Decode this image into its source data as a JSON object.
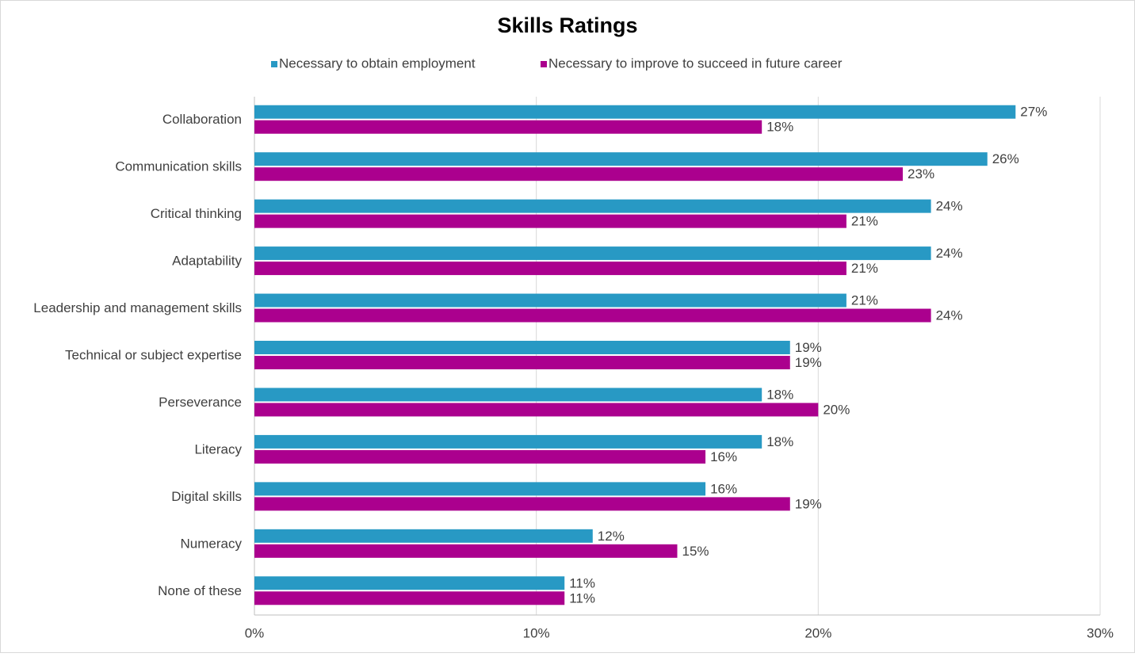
{
  "chart_data": {
    "type": "bar",
    "orientation": "horizontal",
    "title": "Skills Ratings",
    "categories": [
      "Collaboration",
      "Communication skills",
      "Critical thinking",
      "Adaptability",
      "Leadership and management skills",
      "Technical or subject expertise",
      "Perseverance",
      "Literacy",
      "Digital skills",
      "Numeracy",
      "None of these"
    ],
    "series": [
      {
        "name": "Necessary to obtain employment",
        "color": "#2899c4",
        "values": [
          27,
          26,
          24,
          24,
          21,
          19,
          18,
          18,
          16,
          12,
          11
        ],
        "value_labels": [
          "27%",
          "26%",
          "24%",
          "24%",
          "21%",
          "19%",
          "18%",
          "18%",
          "16%",
          "12%",
          "11%"
        ]
      },
      {
        "name": "Necessary to improve to succeed in future career",
        "color": "#ab008e",
        "values": [
          18,
          23,
          21,
          21,
          24,
          19,
          20,
          16,
          19,
          15,
          11
        ],
        "value_labels": [
          "18%",
          "23%",
          "21%",
          "21%",
          "24%",
          "19%",
          "20%",
          "16%",
          "19%",
          "15%",
          "11%"
        ]
      }
    ],
    "xlim": [
      0,
      30
    ],
    "xticks": [
      {
        "value": 0,
        "label": "0%"
      },
      {
        "value": 10,
        "label": "10%"
      },
      {
        "value": 20,
        "label": "20%"
      },
      {
        "value": 30,
        "label": "30%"
      }
    ],
    "grid": true,
    "legend": "top"
  }
}
